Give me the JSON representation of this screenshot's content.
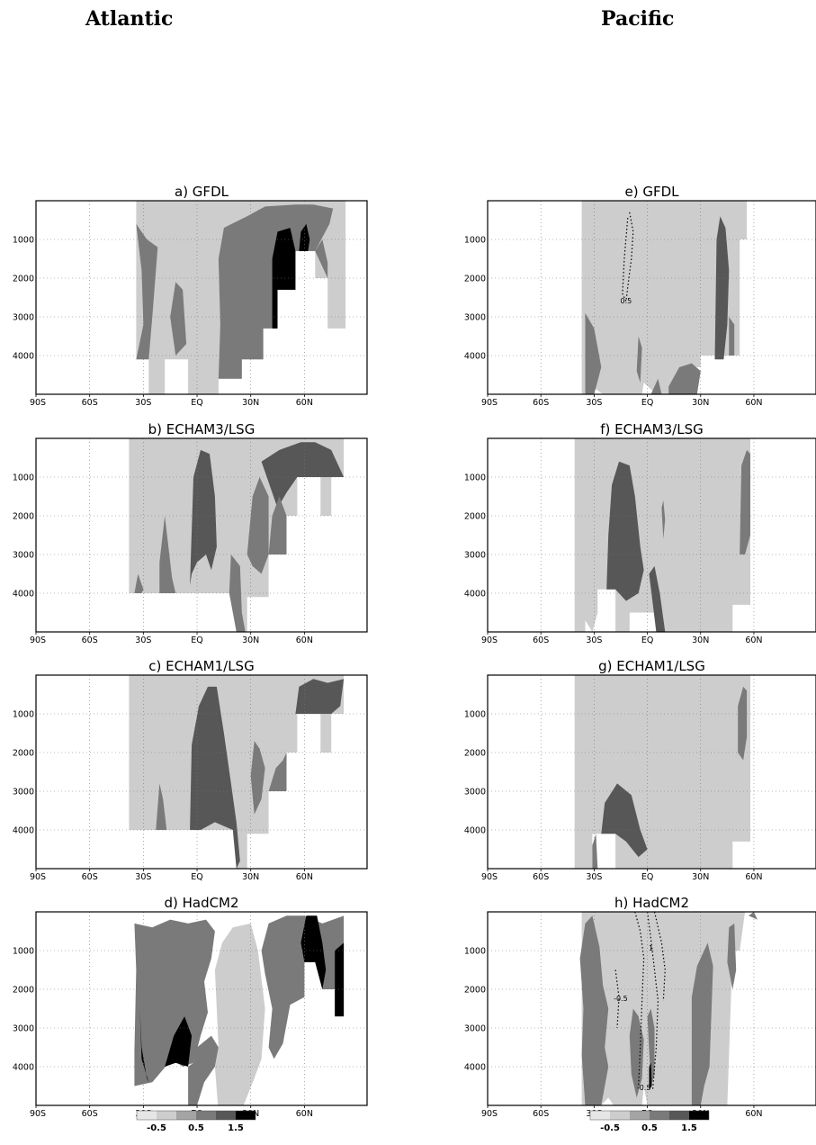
{
  "headings": {
    "left": "Atlantic",
    "right": "Pacific"
  },
  "colorbar": {
    "labels": [
      "-0.5",
      "0.5",
      "1.5"
    ],
    "colors": [
      "#e6e6e6",
      "#cdcdcd",
      "#a4a4a4",
      "#7a7a7a",
      "#575757",
      "#000000"
    ]
  },
  "chart_data": [
    {
      "type": "heatmap",
      "title": "a) GFDL",
      "basin": "Atlantic",
      "x_ticks": [
        "90S",
        "60S",
        "30S",
        "EQ",
        "30N",
        "60N"
      ],
      "y_ticks": [
        "1000",
        "2000",
        "3000",
        "4000"
      ],
      "ylim": [
        5000,
        0
      ]
    },
    {
      "type": "heatmap",
      "title": "b) ECHAM3/LSG",
      "basin": "Atlantic",
      "x_ticks": [
        "90S",
        "60S",
        "30S",
        "EQ",
        "30N",
        "60N"
      ],
      "y_ticks": [
        "1000",
        "2000",
        "3000",
        "4000"
      ],
      "ylim": [
        5000,
        0
      ]
    },
    {
      "type": "heatmap",
      "title": "c) ECHAM1/LSG",
      "basin": "Atlantic",
      "x_ticks": [
        "90S",
        "60S",
        "30S",
        "EQ",
        "30N",
        "60N"
      ],
      "y_ticks": [
        "1000",
        "2000",
        "3000",
        "4000"
      ],
      "ylim": [
        5000,
        0
      ]
    },
    {
      "type": "heatmap",
      "title": "d) HadCM2",
      "basin": "Atlantic",
      "x_ticks": [
        "90S",
        "60S",
        "30S",
        "EQ",
        "30N",
        "60N"
      ],
      "y_ticks": [
        "1000",
        "2000",
        "3000",
        "4000"
      ],
      "ylim": [
        5000,
        0
      ]
    },
    {
      "type": "heatmap",
      "title": "e) GFDL",
      "basin": "Pacific",
      "x_ticks": [
        "90S",
        "60S",
        "30S",
        "EQ",
        "30N",
        "60N"
      ],
      "y_ticks": [
        "1000",
        "2000",
        "3000",
        "4000"
      ],
      "ylim": [
        5000,
        0
      ],
      "contour_labels": [
        "0.5"
      ]
    },
    {
      "type": "heatmap",
      "title": "f) ECHAM3/LSG",
      "basin": "Pacific",
      "x_ticks": [
        "90S",
        "60S",
        "30S",
        "EQ",
        "30N",
        "60N"
      ],
      "y_ticks": [
        "1000",
        "2000",
        "3000",
        "4000"
      ],
      "ylim": [
        5000,
        0
      ]
    },
    {
      "type": "heatmap",
      "title": "g) ECHAM1/LSG",
      "basin": "Pacific",
      "x_ticks": [
        "90S",
        "60S",
        "30S",
        "EQ",
        "30N",
        "60N"
      ],
      "y_ticks": [
        "1000",
        "2000",
        "3000",
        "4000"
      ],
      "ylim": [
        5000,
        0
      ]
    },
    {
      "type": "heatmap",
      "title": "h) HadCM2",
      "basin": "Pacific",
      "x_ticks": [
        "90S",
        "60S",
        "30S",
        "EQ",
        "30N",
        "60N"
      ],
      "y_ticks": [
        "1000",
        "2000",
        "3000",
        "4000"
      ],
      "ylim": [
        5000,
        0
      ],
      "contour_labels": [
        "-0.5",
        "1",
        "-0.5"
      ]
    }
  ]
}
